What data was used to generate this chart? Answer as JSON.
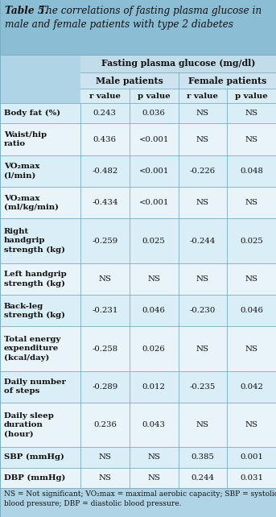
{
  "title_bold": "Table 5.",
  "title_italic_line1": " The correlations of fasting plasma glucose in",
  "title_italic_line2": "male and female patients with type 2 diabetes",
  "bg_color": "#aed4e6",
  "title_bg": "#8bbdd4",
  "header1_bg": "#c2dcea",
  "header2_bg": "#cde3ef",
  "header3_bg": "#d8ecf5",
  "row_bg_even": "#daeef8",
  "row_bg_odd": "#e8f4fa",
  "col_labels": [
    "r value",
    "p value",
    "r value",
    "p value"
  ],
  "sub_header_1": "Male patients",
  "sub_header_2": "Female patients",
  "fasting_header": "Fasting plasma glucose (mg/dl)",
  "rows": [
    {
      "label": "Body fat (%)",
      "vals": [
        "0.243",
        "0.036",
        "NS",
        "NS"
      ],
      "nlines": 1
    },
    {
      "label": "Waist/hip\nratio",
      "vals": [
        "0.436",
        "<0.001",
        "NS",
        "NS"
      ],
      "nlines": 2
    },
    {
      "label": "VO₂max\n(l/min)",
      "vals": [
        "-0.482",
        "<0.001",
        "-0.226",
        "0.048"
      ],
      "nlines": 2
    },
    {
      "label": "VO₂max\n(ml/kg/min)",
      "vals": [
        "-0.434",
        "<0.001",
        "NS",
        "NS"
      ],
      "nlines": 2
    },
    {
      "label": "Right\nhandgrip\nstrength (kg)",
      "vals": [
        "-0.259",
        "0.025",
        "-0.244",
        "0.025"
      ],
      "nlines": 3
    },
    {
      "label": "Left handgrip\nstrength (kg)",
      "vals": [
        "NS",
        "NS",
        "NS",
        "NS"
      ],
      "nlines": 2
    },
    {
      "label": "Back-leg\nstrength (kg)",
      "vals": [
        "-0.231",
        "0.046",
        "-0.230",
        "0.046"
      ],
      "nlines": 2
    },
    {
      "label": "Total energy\nexpenditure\n(kcal/day)",
      "vals": [
        "-0.258",
        "0.026",
        "NS",
        "NS"
      ],
      "nlines": 3
    },
    {
      "label": "Daily number\nof steps",
      "vals": [
        "-0.289",
        "0.012",
        "-0.235",
        "0.042"
      ],
      "nlines": 2
    },
    {
      "label": "Daily sleep\nduration\n(hour)",
      "vals": [
        "0.236",
        "0.043",
        "NS",
        "NS"
      ],
      "nlines": 3
    },
    {
      "label": "SBP (mmHg)",
      "vals": [
        "NS",
        "NS",
        "0.385",
        "0.001"
      ],
      "nlines": 1
    },
    {
      "label": "DBP (mmHg)",
      "vals": [
        "NS",
        "NS",
        "0.244",
        "0.031"
      ],
      "nlines": 1
    }
  ],
  "footnote": "NS = Not significant; VO₂max = maximal aerobic capacity; SBP = systolic\nblood pressure; DBP = diastolic blood pressure.",
  "line_color": "#7aaec0",
  "text_color": "#111111"
}
